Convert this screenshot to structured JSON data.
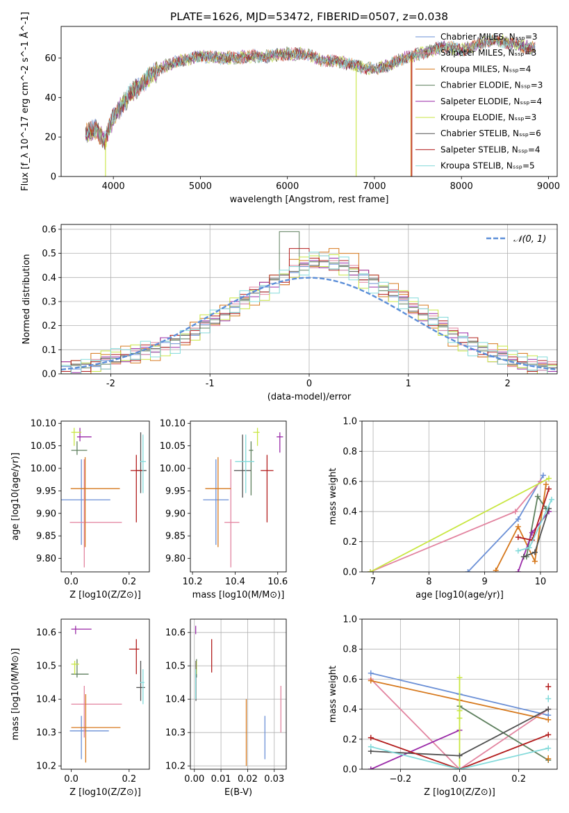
{
  "figure_title": "PLATE=1626, MJD=53472, FIBERID=0507, z=0.038",
  "chart_data": [
    {
      "type": "line",
      "panel": "spectrum",
      "title": "PLATE=1626, MJD=53472, FIBERID=0507, z=0.038",
      "xlabel": "wavelength [Angstrom, rest frame]",
      "ylabel": "Flux [f_λ 10^-17 erg cm^-2 s^-1 Å^-1]",
      "xlim": [
        3400,
        9100
      ],
      "ylim": [
        0,
        76
      ],
      "xticks": [
        4000,
        5000,
        6000,
        7000,
        8000,
        9000
      ],
      "yticks": [
        0,
        20,
        40,
        60
      ],
      "grid": false,
      "legend": "upper right",
      "series": [
        {
          "name": "Chabrier MILES, N_SSP=3",
          "color": "#6a8fd6"
        },
        {
          "name": "Salpeter MILES, N_SSP=3",
          "color": "#e2839f"
        },
        {
          "name": "Kroupa MILES, N_SSP=4",
          "color": "#d6781c"
        },
        {
          "name": "Chabrier ELODIE, N_SSP=3",
          "color": "#5d7f5d"
        },
        {
          "name": "Salpeter ELODIE, N_SSP=4",
          "color": "#9a2aa8"
        },
        {
          "name": "Kroupa ELODIE, N_SSP=3",
          "color": "#c8e640"
        },
        {
          "name": "Chabrier STELIB, N_SSP=6",
          "color": "#505050"
        },
        {
          "name": "Salpeter STELIB, N_SSP=4",
          "color": "#b21c1c"
        },
        {
          "name": "Kroupa STELIB, N_SSP=5",
          "color": "#82dada"
        }
      ],
      "envelope": {
        "x": [
          3680,
          3800,
          3900,
          4000,
          4200,
          4400,
          4600,
          4800,
          5000,
          5200,
          5400,
          5600,
          5800,
          6000,
          6200,
          6400,
          6600,
          6800,
          7000,
          7200,
          7400,
          7600,
          7800,
          8000,
          8200,
          8400,
          8600,
          8800
        ],
        "y": [
          22,
          24,
          18,
          30,
          42,
          50,
          56,
          59,
          61,
          60,
          60,
          61,
          61,
          62,
          62,
          59,
          58,
          56,
          54,
          57,
          61,
          63,
          66,
          64,
          67,
          69,
          67,
          65
        ]
      },
      "drops": [
        {
          "x": 3910,
          "color": "#c8e640"
        },
        {
          "x": 6790,
          "color": "#c8e640"
        },
        {
          "x": 7420,
          "color": "#d6781c"
        },
        {
          "x": 7430,
          "color": "#b21c1c"
        }
      ]
    },
    {
      "type": "step",
      "panel": "residuals",
      "xlabel": "(data-model)/error",
      "ylabel": "Normed distribution",
      "xlim": [
        -2.5,
        2.5
      ],
      "ylim": [
        0,
        0.62
      ],
      "xticks": [
        -2,
        -1,
        0,
        1,
        2
      ],
      "yticks": [
        0.0,
        0.1,
        0.2,
        0.3,
        0.4,
        0.5,
        0.6
      ],
      "grid": true,
      "legend": "upper right",
      "reference": {
        "name": "𝒩(0, 1)",
        "color": "#5b8ed8"
      },
      "bin_width": 0.1,
      "profile": [
        0.02,
        0.025,
        0.03,
        0.04,
        0.05,
        0.06,
        0.07,
        0.075,
        0.09,
        0.1,
        0.12,
        0.13,
        0.15,
        0.17,
        0.2,
        0.22,
        0.24,
        0.27,
        0.3,
        0.33,
        0.35,
        0.38,
        0.4,
        0.43,
        0.44,
        0.46,
        0.46,
        0.45,
        0.44,
        0.42,
        0.4,
        0.38,
        0.35,
        0.33,
        0.3,
        0.27,
        0.24,
        0.22,
        0.19,
        0.16,
        0.14,
        0.12,
        0.1,
        0.08,
        0.07,
        0.05,
        0.04,
        0.03,
        0.025,
        0.02
      ],
      "variation": [
        0.02,
        -0.01,
        0.03,
        -0.02,
        0.01,
        -0.03,
        0.02,
        0.01,
        -0.02,
        0.03
      ],
      "peaks": [
        {
          "x": -0.2,
          "y": 0.59,
          "color": "#5d7f5d"
        },
        {
          "x": -0.1,
          "y": 0.52,
          "color": "#b21c1c"
        },
        {
          "x": 0.3,
          "y": 0.52,
          "color": "#d6781c"
        },
        {
          "x": 0.4,
          "y": 0.5,
          "color": "#d6781c"
        },
        {
          "x": 0.9,
          "y": 0.34,
          "color": "#b21c1c"
        }
      ]
    },
    {
      "type": "errorbar",
      "panel": "age-vs-Z",
      "xlabel": "Z [log10(Z/Z⊙)]",
      "ylabel": "age [log10(age/yr)]",
      "xlim": [
        -0.035,
        0.27
      ],
      "ylim": [
        9.77,
        10.105
      ],
      "xticks": [
        0.0,
        0.2
      ],
      "yticks": [
        9.8,
        9.85,
        9.9,
        9.95,
        10.0,
        10.05,
        10.1
      ],
      "grid": false,
      "points": [
        {
          "x": 0.035,
          "y": 9.93,
          "xerr": [
            0.07,
            0.1
          ],
          "yerr": [
            0.1,
            0.09
          ],
          "color": "#6a8fd6"
        },
        {
          "x": 0.045,
          "y": 9.88,
          "xerr": [
            0.05,
            0.13
          ],
          "yerr": [
            0.1,
            0.14
          ],
          "color": "#e2839f"
        },
        {
          "x": 0.048,
          "y": 9.955,
          "xerr": [
            0.05,
            0.12
          ],
          "yerr": [
            0.13,
            0.07
          ],
          "color": "#d6781c"
        },
        {
          "x": 0.02,
          "y": 10.04,
          "xerr": [
            0.02,
            0.035
          ],
          "yerr": [
            0.01,
            0.02
          ],
          "color": "#5d7f5d"
        },
        {
          "x": 0.03,
          "y": 10.07,
          "xerr": [
            0.01,
            0.04
          ],
          "yerr": [
            0.01,
            0.02
          ],
          "color": "#9a2aa8"
        },
        {
          "x": 0.01,
          "y": 10.08,
          "xerr": [
            0.01,
            0.025
          ],
          "yerr": [
            0.03,
            0.01
          ],
          "color": "#c8e640"
        },
        {
          "x": 0.24,
          "y": 9.995,
          "xerr": [
            0.015,
            0.02
          ],
          "yerr": [
            0.05,
            0.085
          ],
          "color": "#505050"
        },
        {
          "x": 0.225,
          "y": 9.995,
          "xerr": [
            0.02,
            0.02
          ],
          "yerr": [
            0.115,
            0.035
          ],
          "color": "#b21c1c"
        },
        {
          "x": 0.248,
          "y": 10.015,
          "xerr": [
            0.01,
            0.01
          ],
          "yerr": [
            0.07,
            0.06
          ],
          "color": "#82dada"
        }
      ]
    },
    {
      "type": "errorbar",
      "panel": "age-vs-mass",
      "xlabel": "mass [log10(M/M⊙)]",
      "ylabel": "",
      "xlim": [
        10.19,
        10.64
      ],
      "ylim": [
        9.77,
        10.105
      ],
      "xticks": [
        10.2,
        10.4,
        10.6
      ],
      "yticks": [
        9.8,
        9.85,
        9.9,
        9.95,
        10.0,
        10.05,
        10.1
      ],
      "grid": false,
      "points": [
        {
          "x": 10.31,
          "y": 9.93,
          "xerr": [
            0.06,
            0.06
          ],
          "yerr": [
            0.1,
            0.09
          ],
          "color": "#6a8fd6"
        },
        {
          "x": 10.38,
          "y": 9.88,
          "xerr": [
            0.03,
            0.04
          ],
          "yerr": [
            0.1,
            0.14
          ],
          "color": "#e2839f"
        },
        {
          "x": 10.32,
          "y": 9.955,
          "xerr": [
            0.06,
            0.06
          ],
          "yerr": [
            0.13,
            0.07
          ],
          "color": "#d6781c"
        },
        {
          "x": 10.475,
          "y": 10.04,
          "xerr": [
            0.01,
            0.01
          ],
          "yerr": [
            0.1,
            0.02
          ],
          "color": "#5d7f5d"
        },
        {
          "x": 10.61,
          "y": 10.07,
          "xerr": [
            0.015,
            0.015
          ],
          "yerr": [
            0.035,
            0.01
          ],
          "color": "#9a2aa8"
        },
        {
          "x": 10.505,
          "y": 10.08,
          "xerr": [
            0.02,
            0.01
          ],
          "yerr": [
            0.03,
            0.01
          ],
          "color": "#c8e640"
        },
        {
          "x": 10.435,
          "y": 9.995,
          "xerr": [
            0.04,
            0.04
          ],
          "yerr": [
            0.06,
            0.08
          ],
          "color": "#505050"
        },
        {
          "x": 10.55,
          "y": 9.995,
          "xerr": [
            0.03,
            0.03
          ],
          "yerr": [
            0.115,
            0.035
          ],
          "color": "#b21c1c"
        },
        {
          "x": 10.45,
          "y": 10.015,
          "xerr": [
            0.05,
            0.04
          ],
          "yerr": [
            0.07,
            0.06
          ],
          "color": "#82dada"
        }
      ]
    },
    {
      "type": "line",
      "panel": "weight-vs-age",
      "xlabel": "age [log10(age/yr)]",
      "ylabel": "mass weight",
      "xlim": [
        6.8,
        10.3
      ],
      "ylim": [
        0,
        1.0
      ],
      "xticks": [
        7,
        8,
        9,
        10
      ],
      "yticks": [
        0.0,
        0.2,
        0.4,
        0.6,
        0.8,
        1.0
      ],
      "grid": true,
      "series": [
        {
          "color": "#6a8fd6",
          "x": [
            8.7,
            9.6,
            10.05
          ],
          "y": [
            0.0,
            0.35,
            0.64
          ]
        },
        {
          "color": "#e2839f",
          "x": [
            6.95,
            9.55,
            10.0
          ],
          "y": [
            0.0,
            0.4,
            0.6
          ]
        },
        {
          "color": "#d6781c",
          "x": [
            9.2,
            9.6,
            9.9,
            10.1
          ],
          "y": [
            0.01,
            0.3,
            0.07,
            0.58
          ]
        },
        {
          "color": "#5d7f5d",
          "x": [
            9.75,
            9.95,
            10.1
          ],
          "y": [
            0.1,
            0.5,
            0.42
          ]
        },
        {
          "color": "#9a2aa8",
          "x": [
            9.6,
            9.85,
            10.15
          ],
          "y": [
            0.0,
            0.26,
            0.4
          ]
        },
        {
          "color": "#c8e640",
          "x": [
            6.95,
            10.15
          ],
          "y": [
            0.0,
            0.62
          ]
        },
        {
          "color": "#505050",
          "x": [
            9.7,
            9.9,
            10.15
          ],
          "y": [
            0.1,
            0.13,
            0.42
          ]
        },
        {
          "color": "#b21c1c",
          "x": [
            9.6,
            9.85,
            10.15
          ],
          "y": [
            0.23,
            0.21,
            0.55
          ]
        },
        {
          "color": "#82dada",
          "x": [
            9.6,
            9.8,
            10.2
          ],
          "y": [
            0.14,
            0.16,
            0.48
          ]
        }
      ]
    },
    {
      "type": "errorbar",
      "panel": "mass-vs-Z",
      "xlabel": "Z [log10(Z/Z⊙)]",
      "ylabel": "mass [log10(M/M⊙)]",
      "xlim": [
        -0.035,
        0.27
      ],
      "ylim": [
        10.19,
        10.64
      ],
      "xticks": [
        0.0,
        0.2
      ],
      "yticks": [
        10.2,
        10.3,
        10.4,
        10.5,
        10.6
      ],
      "grid": false,
      "points": [
        {
          "x": 0.035,
          "y": 10.305,
          "xerr": [
            0.04,
            0.095
          ],
          "yerr": [
            0.085,
            0.045
          ],
          "color": "#6a8fd6"
        },
        {
          "x": 0.045,
          "y": 10.385,
          "xerr": [
            0.045,
            0.13
          ],
          "yerr": [
            0.1,
            0.055
          ],
          "color": "#e2839f"
        },
        {
          "x": 0.05,
          "y": 10.315,
          "xerr": [
            0.05,
            0.12
          ],
          "yerr": [
            0.105,
            0.1
          ],
          "color": "#d6781c"
        },
        {
          "x": 0.02,
          "y": 10.475,
          "xerr": [
            0.02,
            0.04
          ],
          "yerr": [
            0.01,
            0.045
          ],
          "color": "#5d7f5d"
        },
        {
          "x": 0.015,
          "y": 10.61,
          "xerr": [
            0.015,
            0.055
          ],
          "yerr": [
            0.015,
            0.01
          ],
          "color": "#9a2aa8"
        },
        {
          "x": 0.012,
          "y": 10.505,
          "xerr": [
            0.012,
            0.015
          ],
          "yerr": [
            0.03,
            0.01
          ],
          "color": "#c8e640"
        },
        {
          "x": 0.24,
          "y": 10.435,
          "xerr": [
            0.015,
            0.015
          ],
          "yerr": [
            0.04,
            0.08
          ],
          "color": "#505050"
        },
        {
          "x": 0.225,
          "y": 10.55,
          "xerr": [
            0.025,
            0.01
          ],
          "yerr": [
            0.075,
            0.03
          ],
          "color": "#b21c1c"
        },
        {
          "x": 0.248,
          "y": 10.45,
          "xerr": [
            0.01,
            0.005
          ],
          "yerr": [
            0.065,
            0.04
          ],
          "color": "#82dada"
        }
      ]
    },
    {
      "type": "errorbar",
      "panel": "mass-vs-EBV",
      "xlabel": "E(B-V)",
      "ylabel": "",
      "xlim": [
        -0.0015,
        0.0345
      ],
      "ylim": [
        10.19,
        10.64
      ],
      "xticks": [
        0.0,
        0.01,
        0.02,
        0.03
      ],
      "yticks": [
        10.2,
        10.3,
        10.4,
        10.5,
        10.6
      ],
      "grid": true,
      "points": [
        {
          "x": 0.0265,
          "y": 10.305,
          "xerr": [
            0,
            0
          ],
          "yerr": [
            0.085,
            0.045
          ],
          "color": "#6a8fd6"
        },
        {
          "x": 0.0325,
          "y": 10.385,
          "xerr": [
            0,
            0
          ],
          "yerr": [
            0.085,
            0.055
          ],
          "color": "#e2839f"
        },
        {
          "x": 0.0195,
          "y": 10.315,
          "xerr": [
            0,
            0
          ],
          "yerr": [
            0.115,
            0.085
          ],
          "color": "#d6781c"
        },
        {
          "x": 0.0008,
          "y": 10.475,
          "xerr": [
            0,
            0
          ],
          "yerr": [
            0.01,
            0.045
          ],
          "color": "#5d7f5d"
        },
        {
          "x": 0.0005,
          "y": 10.61,
          "xerr": [
            0,
            0
          ],
          "yerr": [
            0.015,
            0.01
          ],
          "color": "#9a2aa8"
        },
        {
          "x": 0.0008,
          "y": 10.505,
          "xerr": [
            0,
            0
          ],
          "yerr": [
            0.03,
            0.01
          ],
          "color": "#c8e640"
        },
        {
          "x": 0.0006,
          "y": 10.455,
          "xerr": [
            0,
            0
          ],
          "yerr": [
            0.06,
            0.06
          ],
          "color": "#505050"
        },
        {
          "x": 0.0065,
          "y": 10.53,
          "xerr": [
            0,
            0
          ],
          "yerr": [
            0.05,
            0.05
          ],
          "color": "#b21c1c"
        },
        {
          "x": 0.0005,
          "y": 10.45,
          "xerr": [
            0,
            0
          ],
          "yerr": [
            0.05,
            0.04
          ],
          "color": "#82dada"
        }
      ]
    },
    {
      "type": "line",
      "panel": "weight-vs-Z",
      "xlabel": "Z [log10(Z/Z⊙)]",
      "ylabel": "mass weight",
      "xlim": [
        -0.33,
        0.33
      ],
      "ylim": [
        0,
        1.0
      ],
      "xticks": [
        -0.2,
        0.0,
        0.2
      ],
      "yticks": [
        0.0,
        0.2,
        0.4,
        0.6,
        0.8,
        1.0
      ],
      "grid": true,
      "series": [
        {
          "color": "#6a8fd6",
          "x": [
            -0.3,
            0.0,
            0.3
          ],
          "y": [
            0.64,
            0.5,
            0.36
          ]
        },
        {
          "color": "#e2839f",
          "x": [
            -0.3,
            0.0,
            0.3
          ],
          "y": [
            0.6,
            0.0,
            0.4
          ]
        },
        {
          "color": "#d6781c",
          "x": [
            -0.3,
            0.0,
            0.3
          ],
          "y": [
            0.59,
            0.46,
            0.33
          ]
        },
        {
          "color": "#5d7f5d",
          "x": [
            0.0,
            0.3
          ],
          "y": [
            0.42,
            0.06
          ]
        },
        {
          "color": "#9a2aa8",
          "x": [
            -0.3,
            0.0
          ],
          "y": [
            0.0,
            0.26
          ]
        },
        {
          "color": "#c8e640",
          "x": [
            0.0,
            0.0
          ],
          "y": [
            0.0,
            0.61
          ]
        },
        {
          "color": "#505050",
          "x": [
            -0.3,
            0.0,
            0.3
          ],
          "y": [
            0.12,
            0.09,
            0.4
          ]
        },
        {
          "color": "#b21c1c",
          "x": [
            -0.3,
            0.0,
            0.3
          ],
          "y": [
            0.21,
            0.0,
            0.23
          ]
        },
        {
          "color": "#82dada",
          "x": [
            -0.3,
            0.0,
            0.3
          ],
          "y": [
            0.15,
            0.0,
            0.14
          ]
        }
      ],
      "markers": [
        {
          "x": 0.3,
          "y": 0.55,
          "color": "#b21c1c"
        },
        {
          "x": 0.3,
          "y": 0.47,
          "color": "#82dada"
        },
        {
          "x": 0.3,
          "y": 0.07,
          "color": "#d6781c"
        },
        {
          "x": 0.0,
          "y": 0.34,
          "color": "#c8e640"
        },
        {
          "x": 0.0,
          "y": 0.39,
          "color": "#c8e640"
        }
      ]
    }
  ]
}
